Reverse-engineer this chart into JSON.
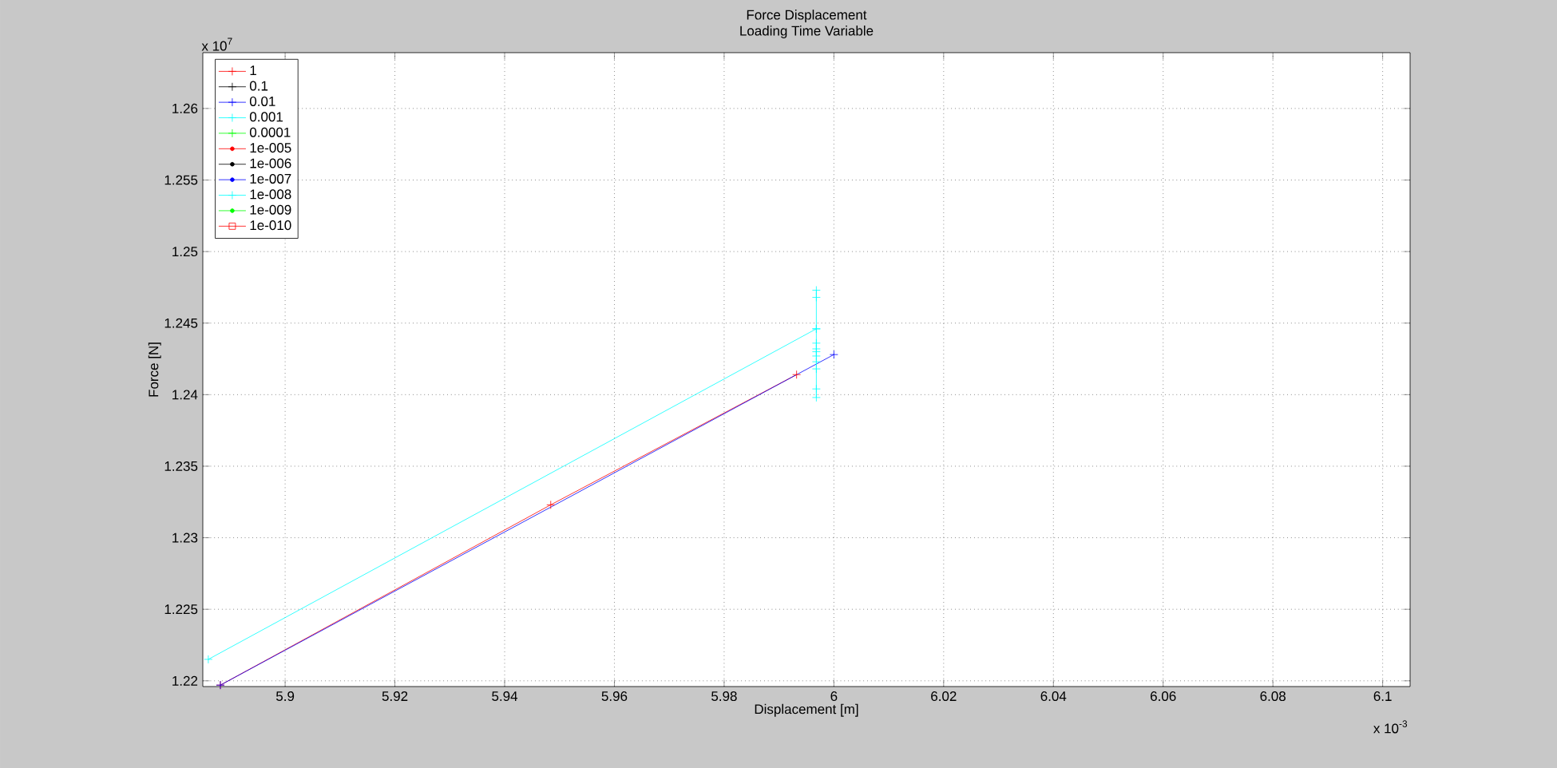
{
  "chart_data": {
    "type": "line",
    "title": "Force Displacement",
    "subtitle": "Loading Time Variable",
    "xlabel": "Displacement [m]",
    "ylabel": "Force [N]",
    "annotations": [
      "x 10$^{7}$",
      "x 10$^{-3}$"
    ],
    "xlim": [
      5.885,
      6.105
    ],
    "ylim": [
      1.2196,
      1.2639
    ],
    "xticks": [
      5.9,
      5.92,
      5.94,
      5.96,
      5.98,
      6,
      6.02,
      6.04,
      6.06,
      6.08,
      6.1
    ],
    "yticks": [
      1.22,
      1.225,
      1.23,
      1.235,
      1.24,
      1.245,
      1.25,
      1.255,
      1.26
    ],
    "grid": true,
    "legend": "top left",
    "line_style": "solid",
    "series": [
      {
        "name": "1",
        "color": "#ff0000",
        "marker": "cross",
        "x": [
          5.8882,
          5.9484,
          5.9932
        ],
        "values": [
          1.2197,
          1.2323,
          1.2414
        ]
      },
      {
        "name": "0.1",
        "color": "#000000",
        "marker": "cross"
      },
      {
        "name": "0.01",
        "color": "#0000ff",
        "marker": "cross",
        "x": [
          5.8882,
          6.0
        ],
        "values": [
          1.2197,
          1.2428
        ]
      },
      {
        "name": "0.001",
        "color": "#00ffff",
        "marker": "cross",
        "x": [
          5.886,
          5.9968
        ],
        "values": [
          1.2215,
          1.2446
        ]
      },
      {
        "name": "0.0001",
        "color": "#00ff00",
        "marker": "cross"
      },
      {
        "name": "1e-005",
        "color": "#ff0000",
        "marker": "circle"
      },
      {
        "name": "1e-006",
        "color": "#000000",
        "marker": "circle"
      },
      {
        "name": "1e-007",
        "color": "#0000ff",
        "marker": "circle"
      },
      {
        "name": "1e-008",
        "color": "#00ffff",
        "marker": "cross",
        "x": [
          5.9968,
          5.9968,
          5.9968,
          5.9968,
          5.9968,
          5.9968,
          5.9968,
          5.9968,
          5.9968,
          5.9968,
          5.9968
        ],
        "values": [
          1.2473,
          1.2468,
          1.2446,
          1.2436,
          1.2432,
          1.243,
          1.2427,
          1.2423,
          1.2418,
          1.2404,
          1.2398
        ]
      },
      {
        "name": "1e-009",
        "color": "#00ff00",
        "marker": "circle"
      },
      {
        "name": "1e-010",
        "color": "#ff0000",
        "marker": "square"
      }
    ]
  }
}
